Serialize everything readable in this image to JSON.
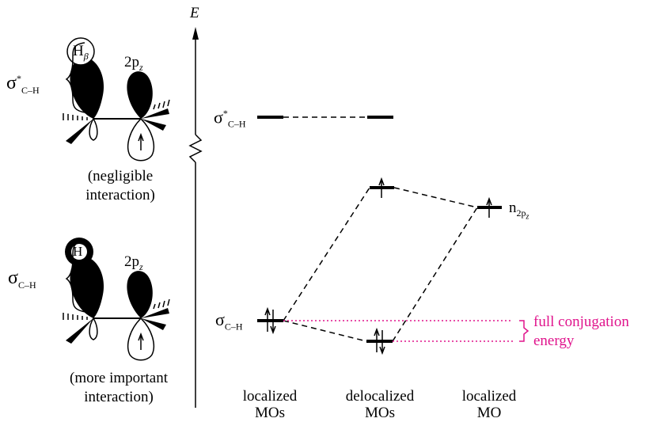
{
  "axis": {
    "label": "E"
  },
  "orbitals": {
    "h_beta_label": "H",
    "h_beta_sub": "β",
    "h_label": "H",
    "p_label_main": "2p",
    "p_label_sub": "z",
    "sigma_star_small": "σ",
    "sigma_star_sup": "*",
    "sigma_star_sub": "C–H",
    "sigma_small": "σ",
    "sigma_sub": "C–H"
  },
  "captions": {
    "top_line1": "(negligible",
    "top_line2": "interaction)",
    "bottom_line1": "(more important",
    "bottom_line2": "interaction)"
  },
  "levels": {
    "sigma_star": {
      "symbol": "σ",
      "sup": "*",
      "sub": "C–H"
    },
    "sigma": {
      "symbol": "σ",
      "sub": "C–H"
    },
    "n": {
      "symbol": "n",
      "sub": "2p",
      "subsub": "z"
    }
  },
  "annotation": {
    "line1": "full conjugation",
    "line2": "energy",
    "color": "#e0138c"
  },
  "columns": [
    {
      "line1": "localized",
      "line2": "MOs"
    },
    {
      "line1": "delocalized",
      "line2": "MOs"
    },
    {
      "line1": "localized",
      "line2": "MO"
    }
  ]
}
